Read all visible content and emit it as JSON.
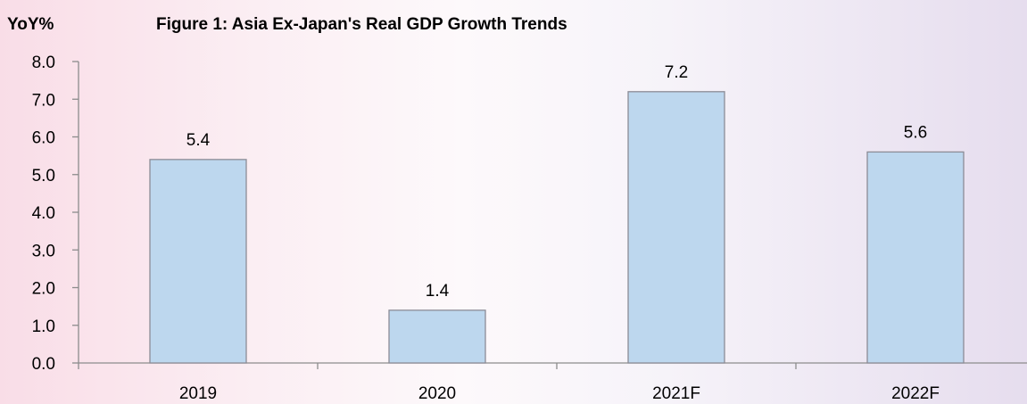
{
  "chart_data": {
    "type": "bar",
    "title": "Figure 1: Asia Ex-Japan's Real GDP Growth Trends",
    "ylabel": "YoY%",
    "xlabel": "",
    "categories": [
      "2019",
      "2020",
      "2021F",
      "2022F"
    ],
    "values": [
      5.4,
      1.4,
      7.2,
      5.6
    ],
    "value_labels": [
      "5.4",
      "1.4",
      "7.2",
      "5.6"
    ],
    "ylim": [
      0,
      8
    ],
    "yticks": [
      "0.0",
      "1.0",
      "2.0",
      "3.0",
      "4.0",
      "5.0",
      "6.0",
      "7.0",
      "8.0"
    ],
    "grid": false,
    "legend": "none",
    "colors": {
      "bar_fill": "#bdd7ee",
      "bar_stroke": "#8c8c96",
      "axis": "#8c8c8c"
    }
  }
}
